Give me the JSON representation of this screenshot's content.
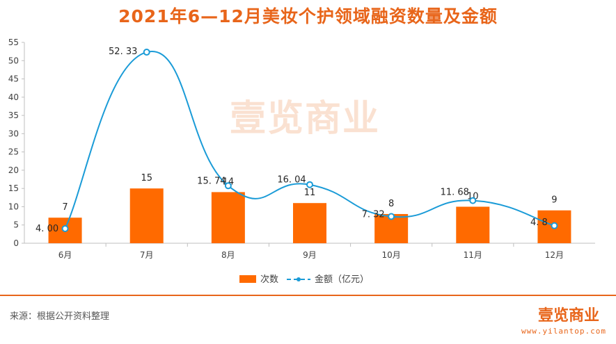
{
  "chart_data": {
    "type": "bar+line",
    "title": "2021年6—12月美妆个护领域融资数量及金额",
    "categories": [
      "6月",
      "7月",
      "8月",
      "9月",
      "10月",
      "11月",
      "12月"
    ],
    "series": [
      {
        "name": "次数",
        "type": "bar",
        "values": [
          7,
          15,
          14,
          11,
          8,
          10,
          9
        ],
        "labels": [
          "7",
          "15",
          "14",
          "11",
          "8",
          "10",
          "9"
        ]
      },
      {
        "name": "金额（亿元）",
        "type": "line",
        "values": [
          4.0,
          52.33,
          15.74,
          16.04,
          7.32,
          11.68,
          4.8
        ],
        "labels": [
          "4. 00",
          "52. 33",
          "15. 74",
          "16. 04",
          "7. 32",
          "11. 68",
          "4. 8"
        ]
      }
    ],
    "ylim": [
      0,
      55
    ],
    "yticks": [
      "0",
      "5",
      "10",
      "15",
      "20",
      "25",
      "30",
      "35",
      "40",
      "45",
      "50",
      "55"
    ],
    "ytick_values": [
      0,
      5,
      10,
      15,
      20,
      25,
      30,
      35,
      40,
      45,
      50,
      55
    ],
    "legend_position": "bottom",
    "grid": false
  },
  "colors": {
    "bar": "#ff6a00",
    "line": "#1a9bd7",
    "title": "#e8651a"
  },
  "watermark": "壹览商业",
  "footer": {
    "source": "来源：根据公开资料整理",
    "brand": "壹览商业",
    "url": "www.yilantop.com"
  }
}
